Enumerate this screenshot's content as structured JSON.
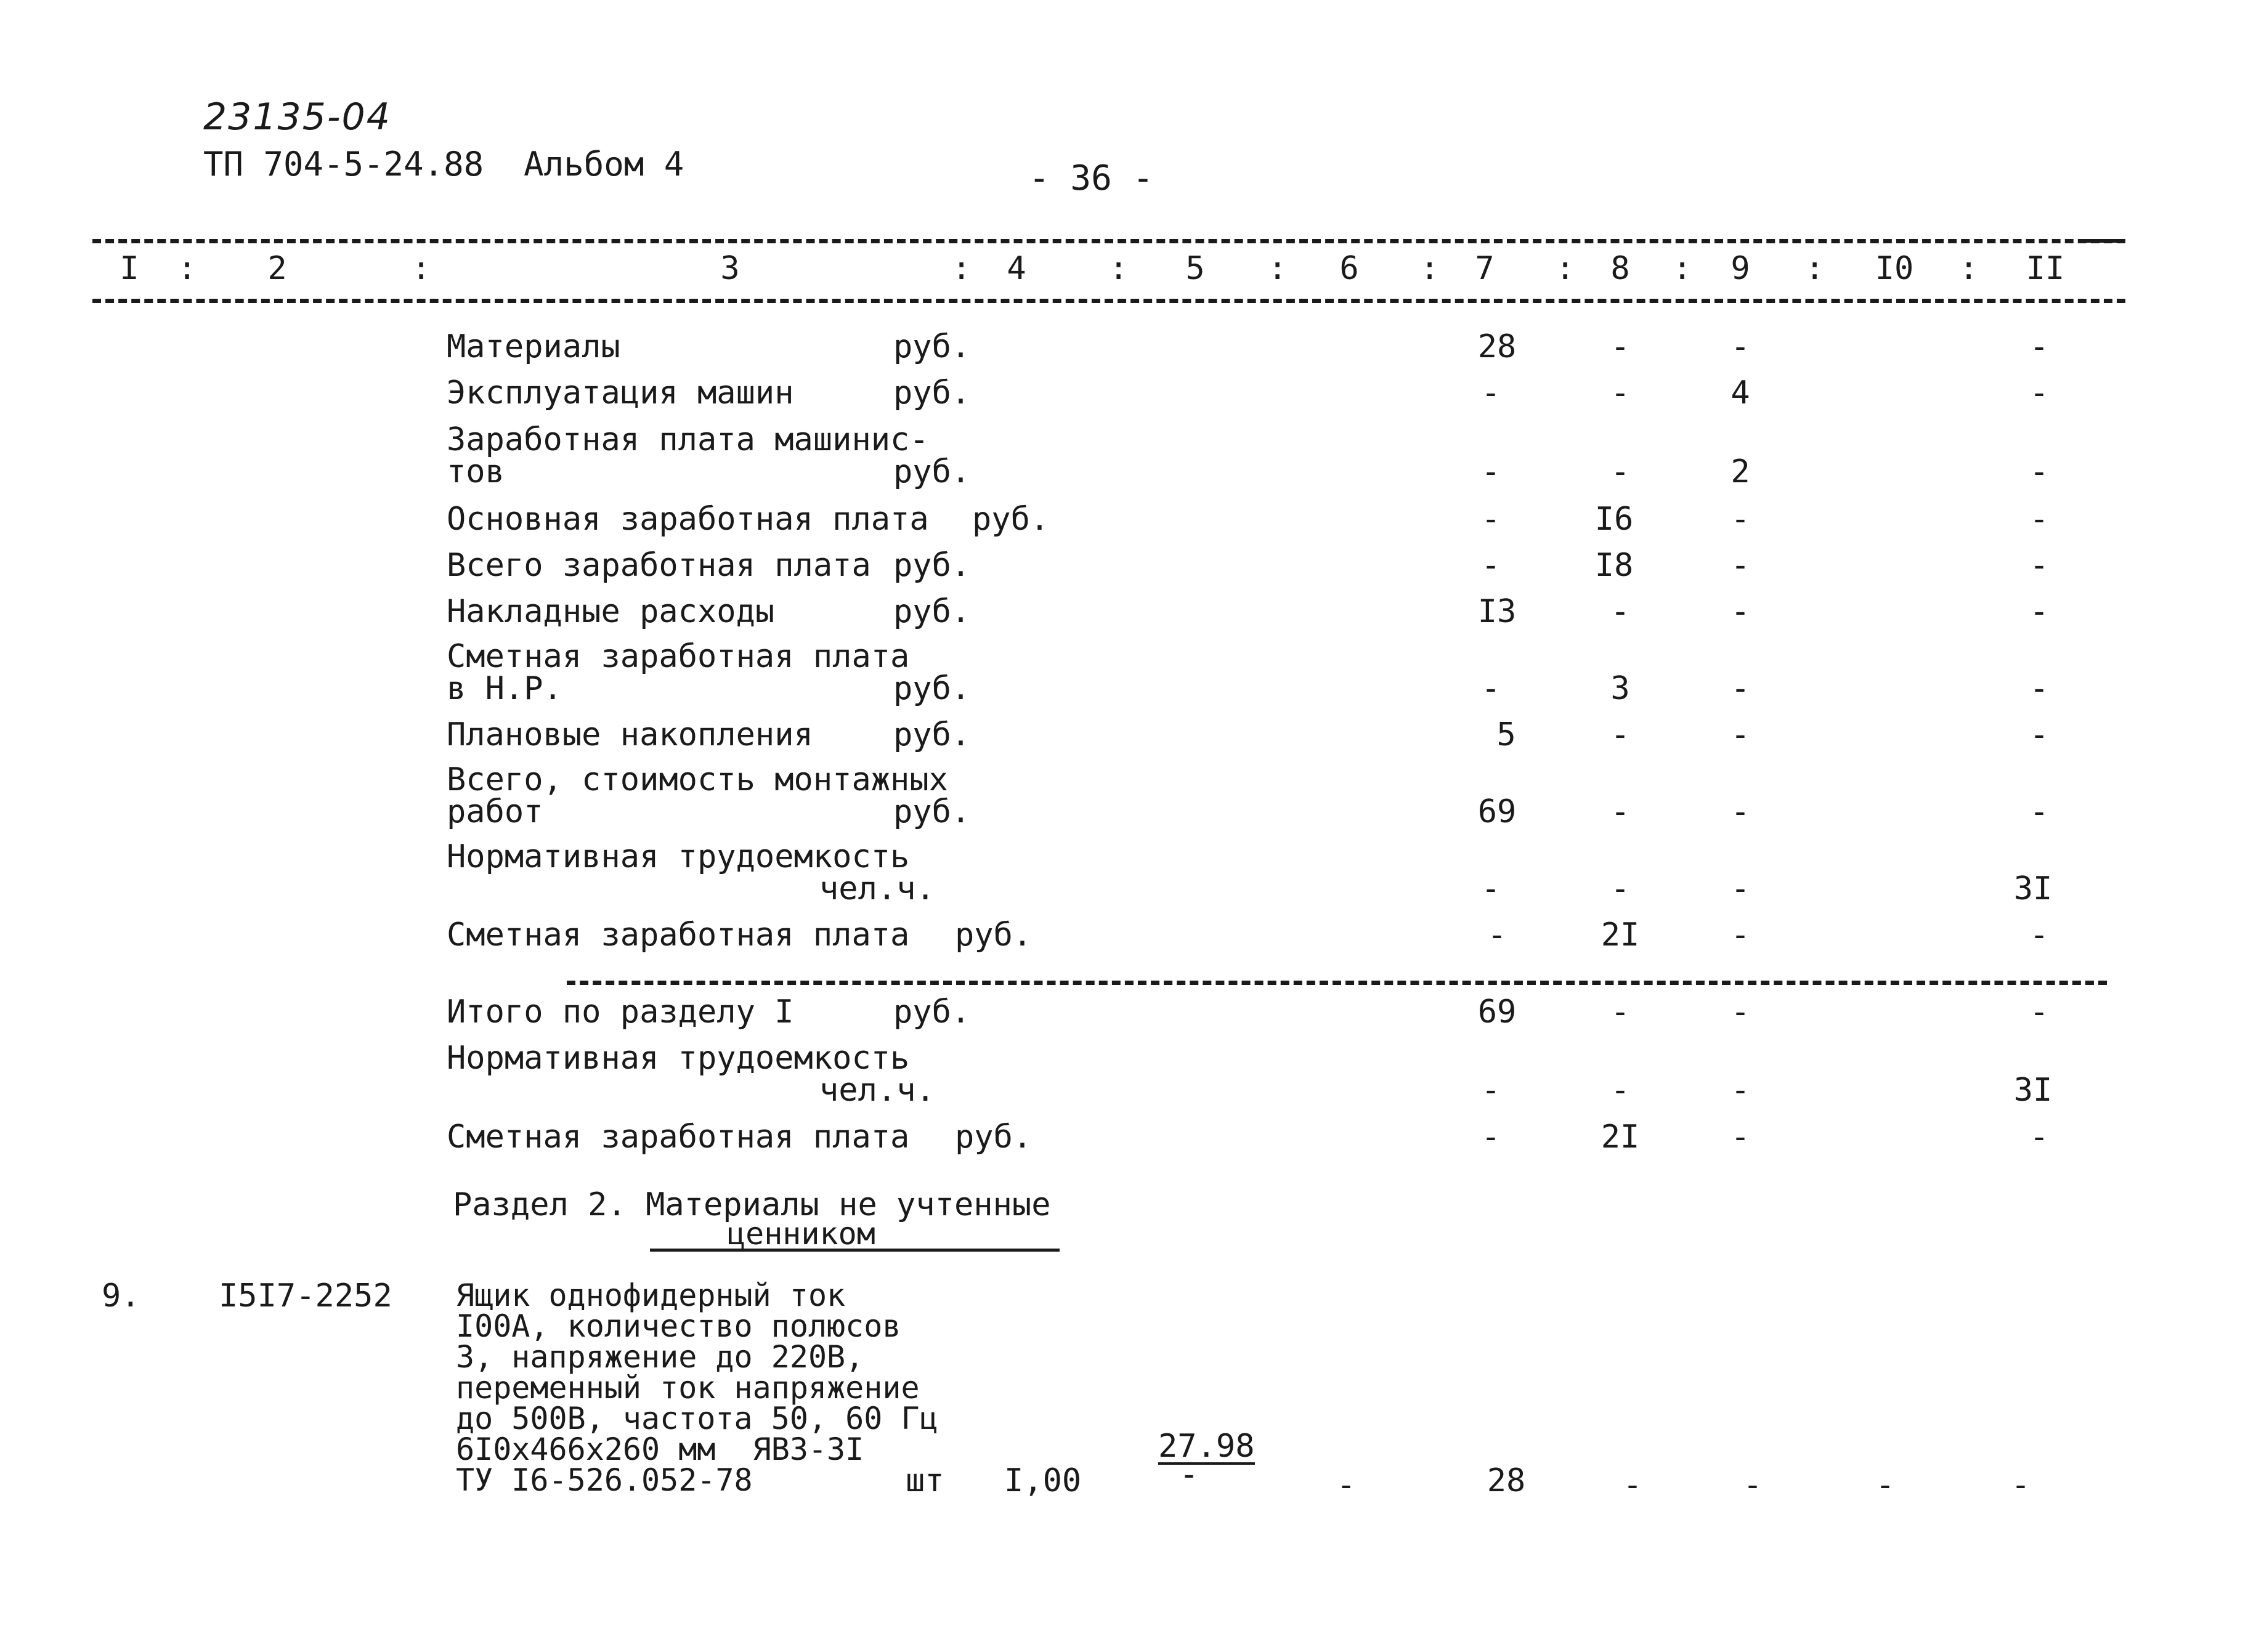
{
  "header": {
    "handwritten_code": "23135-04",
    "doc_ref": "ТП 704-5-24.88  Альбом 4",
    "page_number": "- 36 -"
  },
  "columns": [
    "I",
    "2",
    "3",
    "4",
    "5",
    "6",
    "7",
    "8",
    "9",
    "I0",
    "II"
  ],
  "rows": [
    {
      "label": "Материалы",
      "label2": "",
      "unit": "руб.",
      "c7": "28",
      "c8": "-",
      "c9": "-",
      "c11": "-"
    },
    {
      "label": "Эксплуатация машин",
      "label2": "",
      "unit": "руб.",
      "c7": "-",
      "c8": "-",
      "c9": "4",
      "c11": "-"
    },
    {
      "label": "Заработная плата машинис-",
      "label2": "тов",
      "unit": "руб.",
      "c7": "-",
      "c8": "-",
      "c9": "2",
      "c11": "-"
    },
    {
      "label": "Основная заработная плата",
      "label2": "",
      "unit": "руб.",
      "c7": "-",
      "c8": "I6",
      "c9": "-",
      "c11": "-"
    },
    {
      "label": "Всего заработная плата",
      "label2": "",
      "unit": "руб.",
      "c7": "-",
      "c8": "I8",
      "c9": "-",
      "c11": "-"
    },
    {
      "label": "Накладные расходы",
      "label2": "",
      "unit": "руб.",
      "c7": "I3",
      "c8": "-",
      "c9": "-",
      "c11": "-"
    },
    {
      "label": "Сметная заработная плата",
      "label2": "в Н.Р.",
      "unit": "руб.",
      "c7": "-",
      "c8": "3",
      "c9": "-",
      "c11": "-"
    },
    {
      "label": "Плановые накопления",
      "label2": "",
      "unit": "руб.",
      "c7": "5",
      "c8": "-",
      "c9": "-",
      "c11": "-"
    },
    {
      "label": "Всего, стоимость монтажных",
      "label2": "работ",
      "unit": "руб.",
      "c7": "69",
      "c8": "-",
      "c9": "-",
      "c11": "-"
    },
    {
      "label": "Нормативная трудоемкость",
      "label2": "",
      "unit": "чел.ч.",
      "c7": "-",
      "c8": "-",
      "c9": "-",
      "c11": "3I"
    },
    {
      "label": "Сметная заработная плата",
      "label2": "",
      "unit": "руб.",
      "c7": "-",
      "c8": "2I",
      "c9": "-",
      "c11": "-"
    }
  ],
  "totals": [
    {
      "label": "Итого по разделу I",
      "unit": "руб.",
      "c7": "69",
      "c8": "-",
      "c9": "-",
      "c11": "-"
    },
    {
      "label": "Нормативная трудоемкость",
      "unit": "чел.ч.",
      "c7": "-",
      "c8": "-",
      "c9": "-",
      "c11": "3I"
    },
    {
      "label": "Сметная заработная плата",
      "unit": "руб.",
      "c7": "-",
      "c8": "2I",
      "c9": "-",
      "c11": "-"
    }
  ],
  "section2": {
    "title_line1": "Раздел 2. Материалы не учтенные",
    "title_line2": "ценником"
  },
  "item": {
    "number": "9.",
    "code": "I5I7-2252",
    "desc_lines": [
      "Ящик однофидерный ток",
      "I00А, количество полюсов",
      "3, напряжение до 220В,",
      "переменный ток напряжение",
      "до 500В, частота 50, 60 Гц",
      "6I0x466x260 мм  ЯВЗ-3I",
      "ТУ I6-526.052-78"
    ],
    "unit": "шт",
    "qty": "I,00",
    "price_top": "27.98",
    "price_bottom": "-",
    "c6": "-",
    "c7": "28",
    "c8": "-",
    "c9": "-",
    "c10": "-",
    "c11": "-"
  }
}
